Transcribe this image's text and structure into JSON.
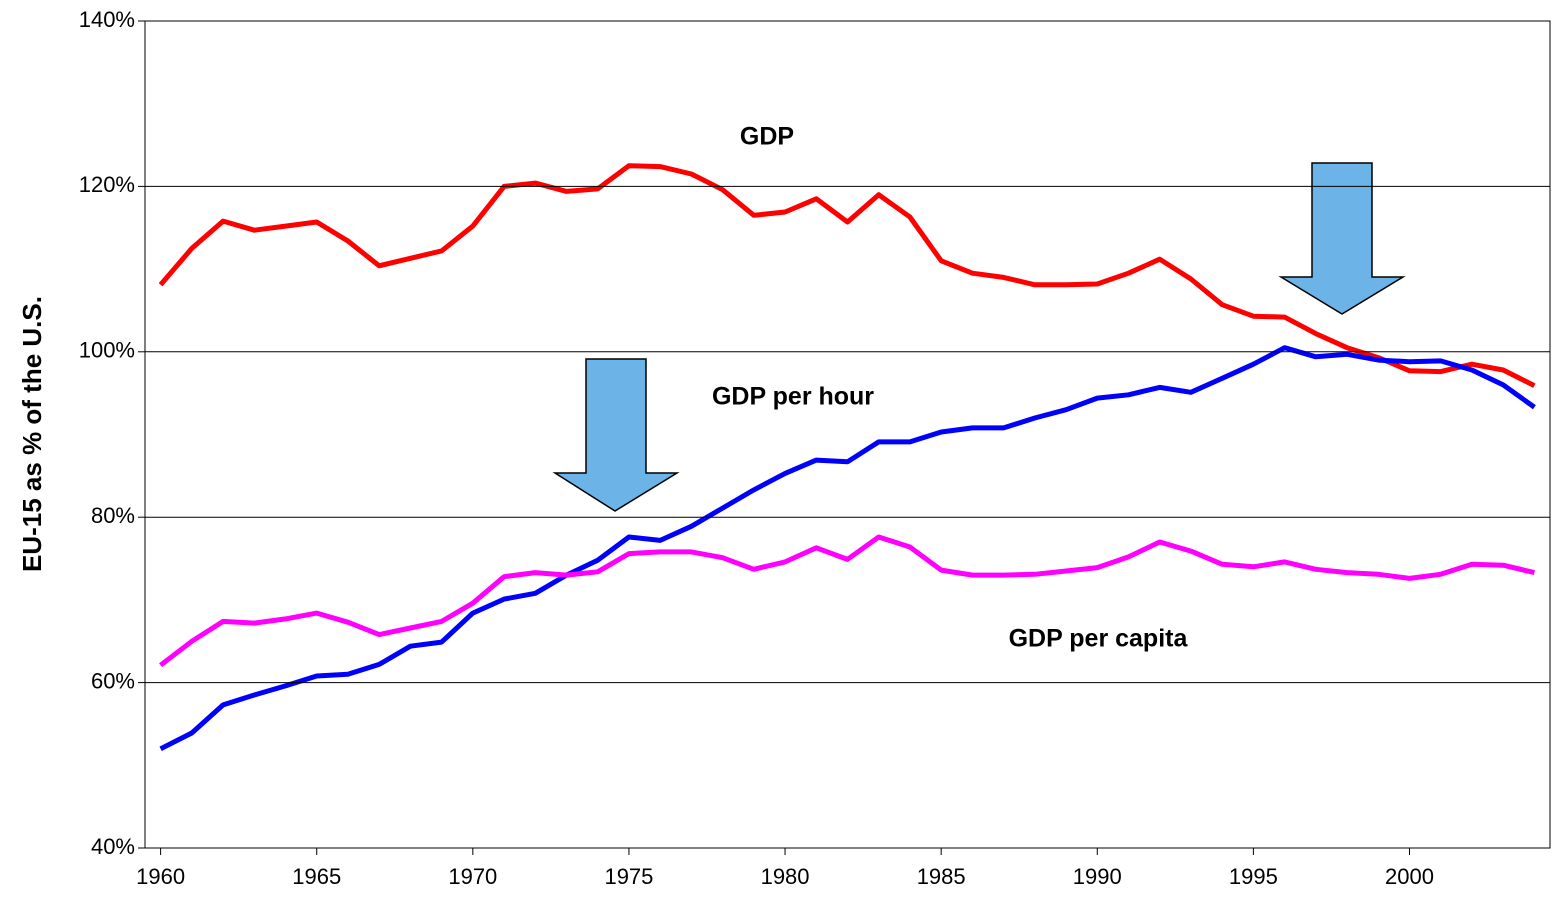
{
  "chart_data": {
    "type": "line",
    "y_label": "EU-15 as % of the U.S.",
    "x": [
      1960,
      1961,
      1962,
      1963,
      1964,
      1965,
      1966,
      1967,
      1968,
      1969,
      1970,
      1971,
      1972,
      1973,
      1974,
      1975,
      1976,
      1977,
      1978,
      1979,
      1980,
      1981,
      1982,
      1983,
      1984,
      1985,
      1986,
      1987,
      1988,
      1989,
      1990,
      1991,
      1992,
      1993,
      1994,
      1995,
      1996,
      1997,
      1998,
      1999,
      2000,
      2001,
      2002,
      2003,
      2004
    ],
    "xlim": [
      1959.5,
      2004.5
    ],
    "xticks": [
      1960,
      1965,
      1970,
      1975,
      1980,
      1985,
      1990,
      1995,
      2000
    ],
    "ylim": [
      40,
      140
    ],
    "yticks": [
      {
        "value": 40,
        "label": "40%"
      },
      {
        "value": 60,
        "label": "60%"
      },
      {
        "value": 80,
        "label": "80%"
      },
      {
        "value": 100,
        "label": "100%"
      },
      {
        "value": 120,
        "label": "120%"
      },
      {
        "value": 140,
        "label": "140%"
      }
    ],
    "grid": true,
    "series": [
      {
        "name": "GDP",
        "color": "#ff0000",
        "values": [
          108.1,
          112.5,
          115.8,
          114.7,
          115.2,
          115.7,
          113.4,
          110.4,
          111.3,
          112.2,
          115.2,
          120.0,
          120.4,
          119.4,
          119.7,
          122.5,
          122.4,
          121.5,
          119.6,
          116.5,
          116.9,
          118.5,
          115.7,
          119.0,
          116.3,
          111.0,
          109.5,
          109.0,
          108.1,
          108.1,
          108.2,
          109.5,
          111.2,
          108.8,
          105.7,
          104.3,
          104.2,
          102.2,
          100.5,
          99.3,
          97.7,
          97.6,
          98.5,
          97.8,
          95.9
        ]
      },
      {
        "name": "GDP per hour",
        "color": "#0000ff",
        "values": [
          52.0,
          53.9,
          57.3,
          58.5,
          59.6,
          60.8,
          61.0,
          62.2,
          64.4,
          64.9,
          68.4,
          70.1,
          70.8,
          73.0,
          74.8,
          77.6,
          77.2,
          78.9,
          81.1,
          83.3,
          85.3,
          86.9,
          86.7,
          89.1,
          89.1,
          90.3,
          90.8,
          90.8,
          92.0,
          93.0,
          94.4,
          94.8,
          95.7,
          95.1,
          96.8,
          98.5,
          100.5,
          99.4,
          99.7,
          99.0,
          98.8,
          98.9,
          97.8,
          96.0,
          93.3
        ]
      },
      {
        "name": "GDP per capita",
        "color": "#ff00ff",
        "values": [
          62.1,
          65.0,
          67.4,
          67.2,
          67.7,
          68.4,
          67.3,
          65.8,
          66.6,
          67.4,
          69.6,
          72.8,
          73.3,
          73.0,
          73.4,
          75.6,
          75.8,
          75.8,
          75.1,
          73.7,
          74.6,
          76.3,
          74.9,
          77.6,
          76.4,
          73.6,
          73.0,
          73.0,
          73.1,
          73.5,
          73.9,
          75.2,
          77.0,
          75.9,
          74.3,
          74.0,
          74.6,
          73.7,
          73.3,
          73.1,
          72.6,
          73.1,
          74.3,
          74.2,
          73.3
        ]
      }
    ]
  }
}
